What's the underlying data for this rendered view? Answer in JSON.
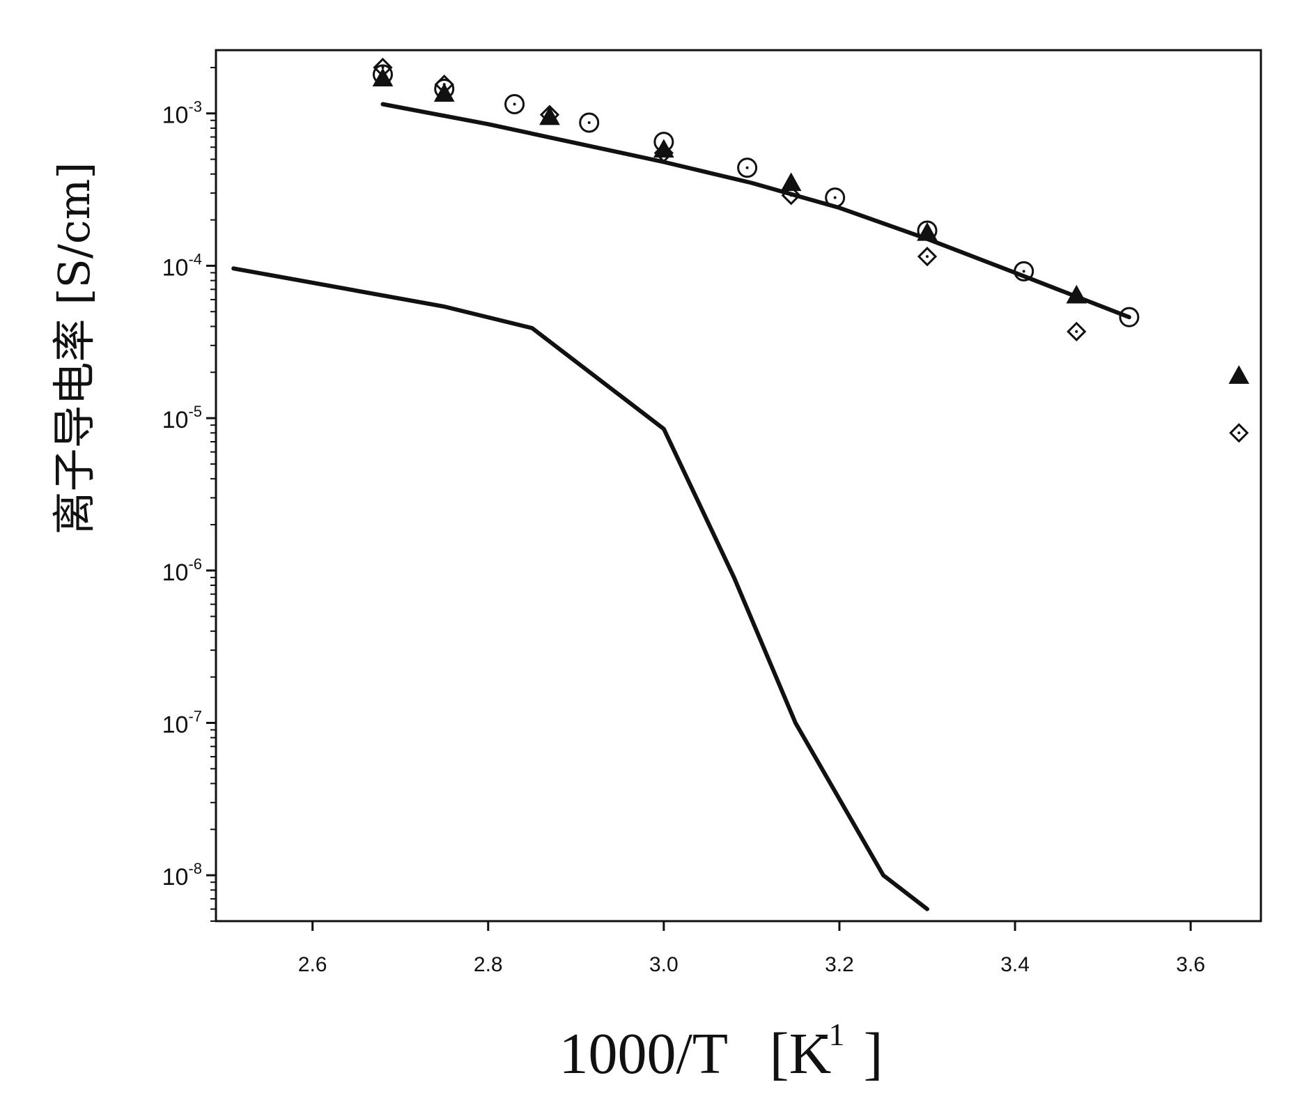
{
  "chart_data": {
    "type": "scatter",
    "xlabel": "1000/T",
    "xlabel_unit": "[K",
    "xlabel_unit_sup": "-1",
    "xlabel_unit_close": "]",
    "ylabel": "离子导电率 [S/cm]",
    "x_range": [
      2.49,
      3.68
    ],
    "y_range": [
      5e-09,
      0.0026
    ],
    "y_scale": "log",
    "grid": false,
    "x_ticks": [
      "2.6",
      "2.8",
      "3.0",
      "3.2",
      "3.4",
      "3.6"
    ],
    "y_ticks": [
      {
        "base": "10",
        "exp": "-3"
      },
      {
        "base": "10",
        "exp": "-4"
      },
      {
        "base": "10",
        "exp": "-5"
      },
      {
        "base": "10",
        "exp": "-6"
      },
      {
        "base": "10",
        "exp": "-7"
      },
      {
        "base": "10",
        "exp": "-8"
      }
    ],
    "series": [
      {
        "style": "line",
        "points": [
          [
            2.68,
            0.00115
          ],
          [
            2.8,
            0.00085
          ],
          [
            3.0,
            0.00048
          ],
          [
            3.1,
            0.00035
          ],
          [
            3.2,
            0.00024
          ],
          [
            3.3,
            0.00015
          ],
          [
            3.4,
            9e-05
          ],
          [
            3.53,
            4.6e-05
          ]
        ]
      },
      {
        "style": "line",
        "points": [
          [
            2.51,
            9.6e-05
          ],
          [
            2.75,
            5.4e-05
          ],
          [
            2.85,
            3.9e-05
          ],
          [
            3.0,
            8.5e-06
          ],
          [
            3.08,
            9e-07
          ],
          [
            3.15,
            1e-07
          ],
          [
            3.25,
            1e-08
          ],
          [
            3.3,
            6e-09
          ]
        ]
      },
      {
        "style": "open-circle-dot",
        "points": [
          [
            2.68,
            0.0018
          ],
          [
            2.75,
            0.00145
          ],
          [
            2.83,
            0.00115
          ],
          [
            2.915,
            0.00087
          ],
          [
            3.0,
            0.00065
          ],
          [
            3.095,
            0.00044
          ],
          [
            3.195,
            0.00028
          ],
          [
            3.3,
            0.00017
          ],
          [
            3.41,
            9.2e-05
          ],
          [
            3.53,
            4.6e-05
          ]
        ]
      },
      {
        "style": "filled-triangle",
        "points": [
          [
            2.68,
            0.0017
          ],
          [
            2.75,
            0.00135
          ],
          [
            2.87,
            0.00095
          ],
          [
            3.0,
            0.00058
          ],
          [
            3.145,
            0.00035
          ],
          [
            3.3,
            0.000165
          ],
          [
            3.47,
            6.4e-05
          ],
          [
            3.655,
            1.9e-05
          ]
        ]
      },
      {
        "style": "open-diamond-dot",
        "points": [
          [
            2.68,
            0.002
          ],
          [
            2.75,
            0.00155
          ],
          [
            2.87,
            0.00098
          ],
          [
            3.0,
            0.00055
          ],
          [
            3.145,
            0.00029
          ],
          [
            3.3,
            0.000115
          ],
          [
            3.47,
            3.7e-05
          ],
          [
            3.655,
            8e-06
          ]
        ]
      }
    ]
  }
}
